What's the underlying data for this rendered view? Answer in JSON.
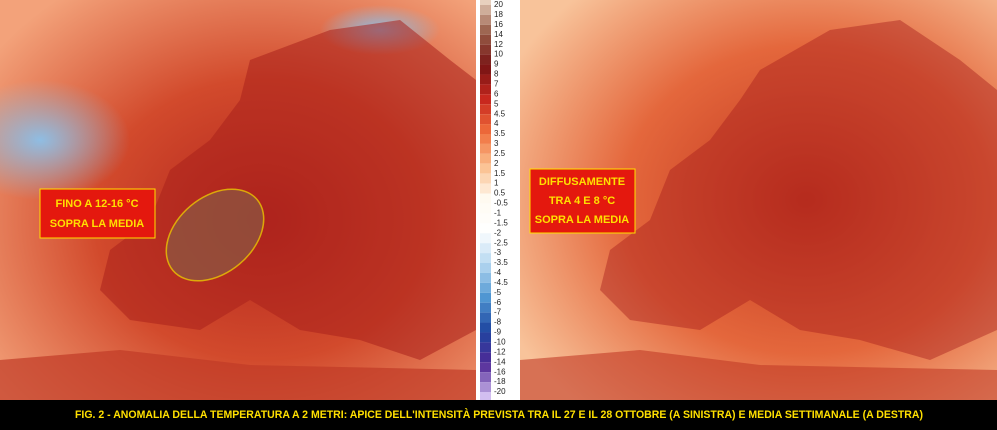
{
  "colorbar": {
    "labels": [
      20,
      18,
      16,
      14,
      12,
      10,
      9,
      8,
      7,
      6,
      5,
      4.5,
      4,
      3.5,
      3,
      2.5,
      2,
      1.5,
      1,
      0.5,
      -0.5,
      -1,
      -1.5,
      -2,
      -2.5,
      -3,
      -3.5,
      -4,
      -4.5,
      -5,
      -6,
      -7,
      -8,
      -9,
      -10,
      -12,
      -14,
      -16,
      -18,
      -20
    ]
  },
  "left_map": {
    "annotation": [
      "FINO A 12-16 °C",
      "SOPRA LA MEDIA"
    ]
  },
  "right_map": {
    "annotation": [
      "DIFFUSAMENTE",
      "TRA 4 E 8 °C",
      "SOPRA LA MEDIA"
    ]
  },
  "caption": "FIG. 2 - ANOMALIA DELLA TEMPERATURA A 2 METRI: APICE DELL'INTENSITÀ PREVISTA TRA IL 27 E IL 28 OTTOBRE (A SINISTRA) E MEDIA SETTIMANALE (A DESTRA)"
}
